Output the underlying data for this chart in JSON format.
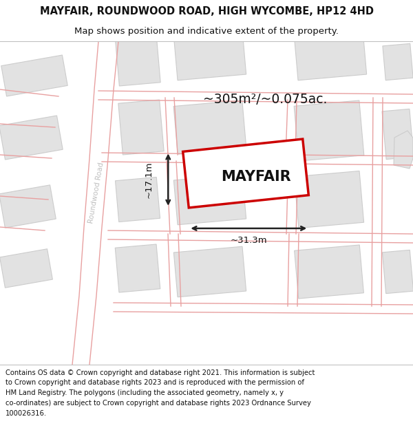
{
  "title": "MAYFAIR, ROUNDWOOD ROAD, HIGH WYCOMBE, HP12 4HD",
  "subtitle": "Map shows position and indicative extent of the property.",
  "footer_lines": [
    "Contains OS data © Crown copyright and database right 2021. This information is subject",
    "to Crown copyright and database rights 2023 and is reproduced with the permission of",
    "HM Land Registry. The polygons (including the associated geometry, namely x, y",
    "co-ordinates) are subject to Crown copyright and database rights 2023 Ordnance Survey",
    "100026316."
  ],
  "area_label": "~305m²/~0.075ac.",
  "property_label": "MAYFAIR",
  "width_label": "~31.3m",
  "height_label": "~17.1m",
  "road_label": "Roundwood Road",
  "bg_color": "#ffffff",
  "map_bg": "#f7f7f7",
  "road_color": "#e8a0a0",
  "road_lw": 1.0,
  "building_fill": "#e2e2e2",
  "building_outline": "#cccccc",
  "building_lw": 0.8,
  "property_outline": "#cc0000",
  "property_fill": "#ffffff",
  "dim_color": "#222222",
  "title_fontsize": 10.5,
  "subtitle_fontsize": 9.5,
  "footer_fontsize": 7.2,
  "area_fontsize": 13.5,
  "label_fontsize": 15,
  "dim_fontsize": 9.5,
  "road_label_fontsize": 7.5
}
